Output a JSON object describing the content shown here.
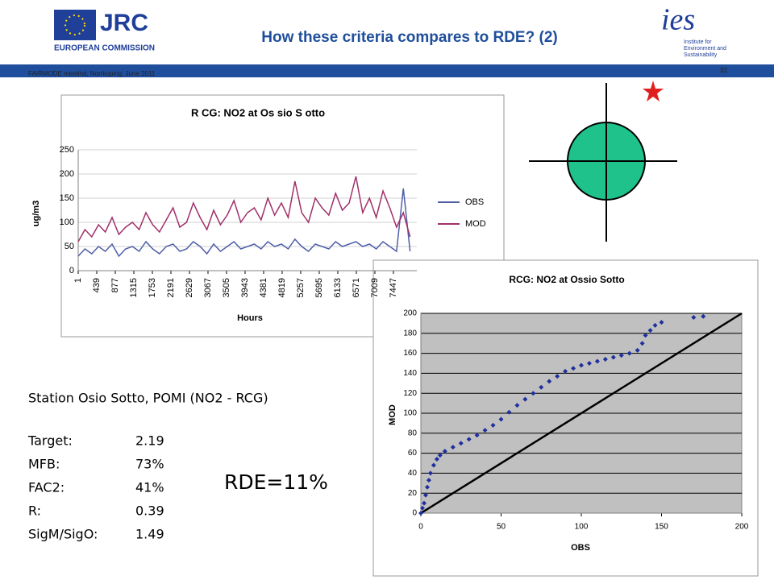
{
  "header": {
    "title": "How these criteria compares to RDE? (2)",
    "jrc": "JRC",
    "commission": "EUROPEAN COMMISSION",
    "ies": "ies",
    "institute": [
      "Institute for",
      "Environment and",
      "Sustainability"
    ],
    "meeting": "FAIRMODE meetind, Norrkoping, June 2011",
    "page": 32
  },
  "stats": {
    "station": "Station Osio Sotto, POMI (NO2 - RCG)",
    "rows": [
      [
        "Target:",
        "2.19"
      ],
      [
        "MFB:",
        "73%"
      ],
      [
        "FAC2:",
        "41%"
      ],
      [
        "R:",
        "0.39"
      ],
      [
        "SigM/SigO:",
        "1.49"
      ]
    ],
    "rde": "RDE=11%"
  },
  "chart_data": [
    {
      "type": "line",
      "title": "R CG: NO2 at Os sio S otto",
      "x_label": "Hours",
      "y_label": "ug/m3",
      "x": [
        1,
        161,
        321,
        481,
        641,
        801,
        961,
        1121,
        1281,
        1441,
        1601,
        1761,
        1921,
        2081,
        2241,
        2401,
        2561,
        2721,
        2881,
        3041,
        3201,
        3361,
        3521,
        3681,
        3841,
        4001,
        4161,
        4321,
        4481,
        4641,
        4801,
        4961,
        5121,
        5281,
        5441,
        5601,
        5761,
        5921,
        6081,
        6241,
        6401,
        6561,
        6721,
        6881,
        7041,
        7201,
        7361,
        7521,
        7681,
        7841
      ],
      "series": [
        {
          "name": "OBS",
          "color": "#4f5fa8",
          "values": [
            30,
            45,
            35,
            50,
            40,
            55,
            30,
            45,
            50,
            40,
            60,
            45,
            35,
            50,
            55,
            40,
            45,
            60,
            50,
            35,
            55,
            40,
            50,
            60,
            45,
            50,
            55,
            45,
            60,
            50,
            55,
            45,
            65,
            50,
            40,
            55,
            50,
            45,
            60,
            50,
            55,
            60,
            50,
            55,
            45,
            60,
            50,
            40,
            170,
            40
          ]
        },
        {
          "name": "MOD",
          "color": "#a0306a",
          "values": [
            60,
            85,
            70,
            95,
            80,
            110,
            75,
            90,
            100,
            85,
            120,
            95,
            80,
            105,
            130,
            90,
            100,
            140,
            110,
            85,
            125,
            95,
            115,
            145,
            100,
            120,
            130,
            105,
            150,
            115,
            140,
            110,
            185,
            120,
            100,
            150,
            130,
            115,
            160,
            125,
            140,
            195,
            120,
            150,
            110,
            165,
            130,
            90,
            120,
            70
          ]
        }
      ],
      "xlim": [
        1,
        8000
      ],
      "xticks": [
        1,
        439,
        877,
        1315,
        1753,
        2191,
        2629,
        3067,
        3505,
        3943,
        4381,
        4819,
        5257,
        5695,
        6133,
        6571,
        7009,
        7447
      ],
      "ylim": [
        0,
        250
      ],
      "yticks": [
        0,
        50,
        100,
        150,
        200,
        250
      ],
      "grid": true
    },
    {
      "type": "scatter",
      "title": "RCG: NO2 at Ossio Sotto",
      "x_label": "OBS",
      "y_label": "MOD",
      "color": "#1f2f9f",
      "x": [
        0,
        1,
        2,
        3,
        4,
        5,
        6,
        8,
        10,
        12,
        15,
        20,
        25,
        30,
        35,
        40,
        45,
        50,
        55,
        60,
        65,
        70,
        75,
        80,
        85,
        90,
        95,
        100,
        105,
        110,
        115,
        120,
        125,
        130,
        135,
        138,
        140,
        143,
        146,
        150,
        170,
        176
      ],
      "values": [
        0,
        5,
        10,
        18,
        26,
        33,
        40,
        48,
        54,
        58,
        62,
        66,
        70,
        74,
        78,
        83,
        88,
        94,
        101,
        108,
        114,
        120,
        126,
        132,
        137,
        142,
        145,
        148,
        150,
        152,
        154,
        156,
        158,
        160,
        163,
        170,
        178,
        183,
        188,
        191,
        196,
        197
      ],
      "xlim": [
        0,
        200
      ],
      "xticks": [
        0,
        50,
        100,
        150,
        200
      ],
      "ylim": [
        0,
        200
      ],
      "yticks": [
        0,
        20,
        40,
        60,
        80,
        100,
        120,
        140,
        160,
        180,
        200
      ],
      "grid": true
    }
  ]
}
